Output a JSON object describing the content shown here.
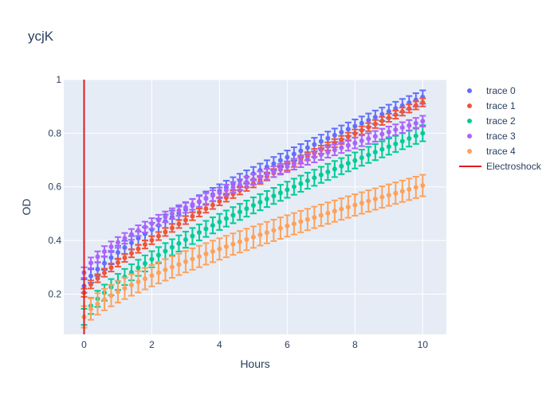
{
  "chart_data": {
    "type": "scatter",
    "title": "ycjK",
    "xlabel": "Hours",
    "ylabel": "OD",
    "xlim": [
      -0.6,
      10.7
    ],
    "ylim": [
      0.05,
      1.0
    ],
    "x_ticks": [
      0,
      2,
      4,
      6,
      8,
      10
    ],
    "y_ticks": [
      0.2,
      0.4,
      0.6,
      0.8,
      1
    ],
    "y_tick_labels": [
      "0.2",
      "0.4",
      "0.6",
      "0.8",
      "1"
    ],
    "grid": true,
    "legend_position": "right",
    "x": [
      0,
      0.2,
      0.4,
      0.6,
      0.8,
      1.0,
      1.2,
      1.4,
      1.6,
      1.8,
      2.0,
      2.2,
      2.4,
      2.6,
      2.8,
      3.0,
      3.2,
      3.4,
      3.6,
      3.8,
      4.0,
      4.2,
      4.4,
      4.6,
      4.8,
      5.0,
      5.2,
      5.4,
      5.6,
      5.8,
      6.0,
      6.2,
      6.4,
      6.6,
      6.8,
      7.0,
      7.2,
      7.4,
      7.6,
      7.8,
      8.0,
      8.2,
      8.4,
      8.6,
      8.8,
      9.0,
      9.2,
      9.4,
      9.6,
      9.8,
      10.0
    ],
    "series": [
      {
        "name": "trace 0",
        "color": "#636efa",
        "start": 0.23,
        "end": 0.935,
        "power": 0.75,
        "err": 0.025
      },
      {
        "name": "trace 1",
        "color": "#ef553b",
        "start": 0.205,
        "end": 0.915,
        "power": 0.8,
        "err": 0.015
      },
      {
        "name": "trace 2",
        "color": "#00cc96",
        "start": 0.115,
        "end": 0.8,
        "power": 0.72,
        "err": 0.03
      },
      {
        "name": "trace 3",
        "color": "#ab63fa",
        "start": 0.28,
        "end": 0.845,
        "power": 0.7,
        "err": 0.02
      },
      {
        "name": "trace 4",
        "color": "#ffa15a",
        "start": 0.115,
        "end": 0.605,
        "power": 0.72,
        "err": 0.04
      }
    ],
    "vline": {
      "name": "Electroshock",
      "x": 0,
      "color": "#e3191c"
    }
  }
}
